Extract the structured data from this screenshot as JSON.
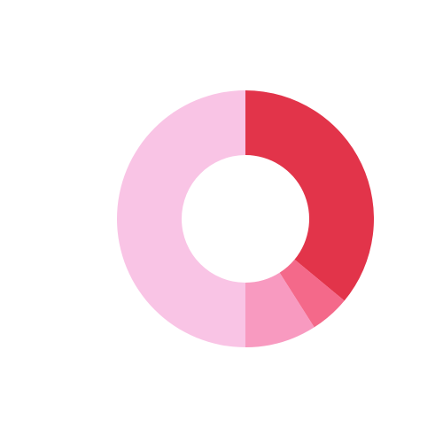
{
  "chart_data": {
    "type": "pie",
    "variant": "donut",
    "title": "",
    "legend": "none",
    "slices": [
      {
        "value": 36,
        "color": "#e2344a"
      },
      {
        "value": 5,
        "color": "#f4698a"
      },
      {
        "value": 9,
        "color": "#f89ac0"
      },
      {
        "value": 50,
        "color": "#f9c4e5"
      }
    ]
  }
}
